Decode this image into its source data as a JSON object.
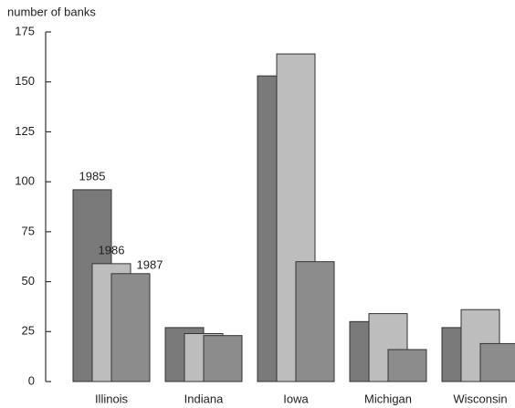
{
  "chart_data": {
    "type": "bar",
    "y_label": "number of banks",
    "categories": [
      "Illinois",
      "Indiana",
      "Iowa",
      "Michigan",
      "Wisconsin"
    ],
    "series": [
      {
        "name": "1985",
        "color": "#7a7a7a",
        "values": [
          96,
          27,
          153,
          30,
          27
        ]
      },
      {
        "name": "1986",
        "color": "#bdbdbd",
        "values": [
          59,
          24,
          164,
          34,
          36
        ]
      },
      {
        "name": "1987",
        "color": "#8c8c8c",
        "values": [
          54,
          23,
          60,
          16,
          19
        ]
      }
    ],
    "ylim": [
      0,
      175
    ],
    "yticks": [
      0,
      25,
      50,
      75,
      100,
      125,
      150,
      175
    ]
  }
}
